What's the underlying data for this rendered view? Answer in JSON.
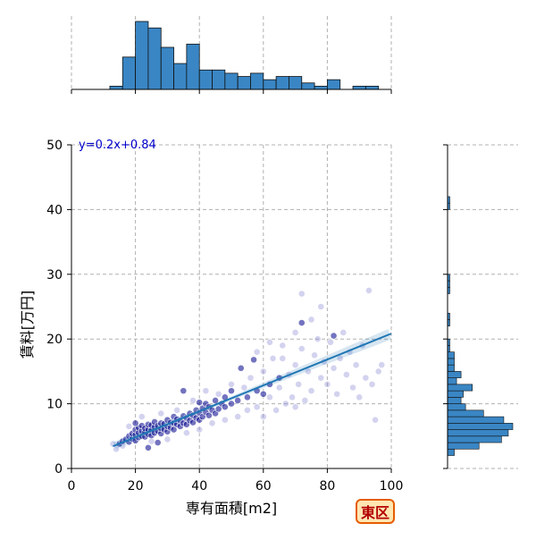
{
  "chart_data": {
    "type": "scatter",
    "title": "",
    "xlabel": "専有面積[m2]",
    "ylabel": "賃料[万円]",
    "xlim": [
      0,
      100
    ],
    "ylim": [
      0,
      50
    ],
    "xticks": [
      0,
      20,
      40,
      60,
      80,
      100
    ],
    "yticks": [
      0,
      10,
      20,
      30,
      40,
      50
    ],
    "grid": true,
    "annotation": "y=0.2x+0.84",
    "badge": "東区",
    "regression": {
      "slope": 0.2,
      "intercept": 0.84,
      "x_range": [
        13,
        100
      ]
    },
    "marginal_x_hist": {
      "bin_edges": [
        0,
        4,
        8,
        12,
        16,
        20,
        24,
        28,
        32,
        36,
        40,
        44,
        48,
        52,
        56,
        60,
        64,
        68,
        72,
        76,
        80,
        84,
        88,
        92,
        96,
        100
      ],
      "counts": [
        0,
        0,
        0,
        1,
        10,
        21,
        19,
        13,
        8,
        14,
        6,
        6,
        5,
        4,
        5,
        3,
        4,
        4,
        2,
        1,
        3,
        0,
        1,
        1,
        0
      ]
    },
    "marginal_y_hist": {
      "bin_edges": [
        0,
        1,
        2,
        3,
        4,
        5,
        6,
        7,
        8,
        9,
        10,
        11,
        12,
        13,
        14,
        15,
        16,
        17,
        18,
        19,
        20,
        21,
        22,
        23,
        24,
        25,
        26,
        27,
        28,
        29,
        30,
        31,
        32,
        33,
        34,
        35,
        36,
        37,
        38,
        39,
        40,
        41,
        42
      ],
      "counts": [
        0,
        0,
        3,
        14,
        24,
        27,
        29,
        25,
        16,
        8,
        6,
        7,
        11,
        4,
        6,
        3,
        3,
        3,
        1,
        1,
        0,
        0,
        1,
        1,
        0,
        0,
        0,
        1,
        1,
        1,
        0,
        0,
        0,
        0,
        0,
        0,
        0,
        0,
        0,
        0,
        1,
        1
      ]
    },
    "series": [
      {
        "points": [
          [
            15,
            3.8
          ],
          [
            16,
            4.2
          ],
          [
            17,
            4.5
          ],
          [
            18,
            4.1
          ],
          [
            18,
            5.0
          ],
          [
            19,
            4.6
          ],
          [
            19,
            5.4
          ],
          [
            20,
            4.3
          ],
          [
            20,
            5.2
          ],
          [
            20,
            6.0
          ],
          [
            21,
            4.8
          ],
          [
            21,
            5.5
          ],
          [
            21,
            6.3
          ],
          [
            22,
            5.0
          ],
          [
            22,
            5.8
          ],
          [
            22,
            6.6
          ],
          [
            23,
            4.9
          ],
          [
            23,
            5.6
          ],
          [
            23,
            6.2
          ],
          [
            24,
            5.3
          ],
          [
            24,
            6.0
          ],
          [
            24,
            6.8
          ],
          [
            25,
            5.1
          ],
          [
            25,
            5.9
          ],
          [
            25,
            6.7
          ],
          [
            26,
            5.5
          ],
          [
            26,
            6.4
          ],
          [
            26,
            7.2
          ],
          [
            27,
            5.8
          ],
          [
            27,
            6.6
          ],
          [
            28,
            5.4
          ],
          [
            28,
            6.2
          ],
          [
            28,
            7.0
          ],
          [
            29,
            6.0
          ],
          [
            29,
            6.9
          ],
          [
            30,
            5.7
          ],
          [
            30,
            6.5
          ],
          [
            30,
            7.5
          ],
          [
            31,
            6.3
          ],
          [
            31,
            7.1
          ],
          [
            32,
            6.0
          ],
          [
            32,
            7.0
          ],
          [
            32,
            8.0
          ],
          [
            33,
            6.8
          ],
          [
            33,
            7.6
          ],
          [
            34,
            6.5
          ],
          [
            34,
            7.4
          ],
          [
            35,
            7.0
          ],
          [
            35,
            8.1
          ],
          [
            36,
            6.8
          ],
          [
            36,
            7.8
          ],
          [
            37,
            7.4
          ],
          [
            37,
            8.5
          ],
          [
            38,
            7.1
          ],
          [
            38,
            8.2
          ],
          [
            39,
            7.8
          ],
          [
            39,
            9.0
          ],
          [
            40,
            7.5
          ],
          [
            40,
            8.6
          ],
          [
            40,
            10.2
          ],
          [
            41,
            8.0
          ],
          [
            41,
            9.3
          ],
          [
            42,
            8.7
          ],
          [
            42,
            10.0
          ],
          [
            43,
            8.2
          ],
          [
            43,
            9.5
          ],
          [
            44,
            9.0
          ],
          [
            45,
            8.5
          ],
          [
            45,
            10.5
          ],
          [
            46,
            9.2
          ],
          [
            47,
            10.0
          ],
          [
            48,
            9.5
          ],
          [
            48,
            11.0
          ],
          [
            50,
            10.0
          ],
          [
            50,
            12.0
          ],
          [
            52,
            10.5
          ],
          [
            53,
            15.5
          ],
          [
            55,
            11.0
          ],
          [
            57,
            16.8
          ],
          [
            58,
            12.0
          ],
          [
            60,
            11.5
          ],
          [
            62,
            13.0
          ],
          [
            65,
            14.0
          ],
          [
            72,
            22.5
          ],
          [
            82,
            20.5
          ],
          [
            20,
            7.0
          ],
          [
            24,
            3.2
          ],
          [
            27,
            4.0
          ],
          [
            35,
            12.0
          ]
        ],
        "color": "#00008b",
        "note": "dense points"
      },
      {
        "points": [
          [
            13,
            3.8
          ],
          [
            14,
            3.0
          ],
          [
            16,
            3.5
          ],
          [
            18,
            6.5
          ],
          [
            22,
            8.0
          ],
          [
            25,
            4.2
          ],
          [
            28,
            8.5
          ],
          [
            30,
            4.5
          ],
          [
            33,
            9.0
          ],
          [
            36,
            5.5
          ],
          [
            38,
            10.5
          ],
          [
            40,
            6.0
          ],
          [
            42,
            12.0
          ],
          [
            44,
            7.0
          ],
          [
            46,
            11.5
          ],
          [
            48,
            7.5
          ],
          [
            50,
            13.0
          ],
          [
            52,
            8.0
          ],
          [
            54,
            12.5
          ],
          [
            55,
            9.0
          ],
          [
            56,
            14.0
          ],
          [
            58,
            9.5
          ],
          [
            60,
            15.0
          ],
          [
            60,
            8.0
          ],
          [
            62,
            11.0
          ],
          [
            63,
            17.0
          ],
          [
            64,
            9.0
          ],
          [
            65,
            12.5
          ],
          [
            66,
            19.0
          ],
          [
            67,
            10.0
          ],
          [
            68,
            14.5
          ],
          [
            69,
            11.0
          ],
          [
            70,
            16.0
          ],
          [
            70,
            9.5
          ],
          [
            71,
            13.0
          ],
          [
            72,
            18.5
          ],
          [
            73,
            10.5
          ],
          [
            74,
            15.0
          ],
          [
            75,
            12.0
          ],
          [
            76,
            17.5
          ],
          [
            77,
            20.0
          ],
          [
            78,
            14.0
          ],
          [
            79,
            16.5
          ],
          [
            80,
            13.0
          ],
          [
            81,
            19.5
          ],
          [
            82,
            15.5
          ],
          [
            83,
            11.5
          ],
          [
            84,
            17.0
          ],
          [
            85,
            21.0
          ],
          [
            86,
            14.5
          ],
          [
            87,
            18.0
          ],
          [
            88,
            12.5
          ],
          [
            89,
            16.0
          ],
          [
            90,
            11.0
          ],
          [
            91,
            19.0
          ],
          [
            92,
            14.0
          ],
          [
            93,
            27.5
          ],
          [
            94,
            13.0
          ],
          [
            95,
            7.5
          ],
          [
            96,
            15.0
          ],
          [
            97,
            16.0
          ],
          [
            72,
            27.0
          ],
          [
            78,
            25.0
          ],
          [
            75,
            23.0
          ],
          [
            66,
            17.0
          ],
          [
            70,
            21.0
          ],
          [
            62,
            19.5
          ],
          [
            58,
            18.0
          ]
        ],
        "color": "#8080d0",
        "note": "light points"
      }
    ]
  }
}
